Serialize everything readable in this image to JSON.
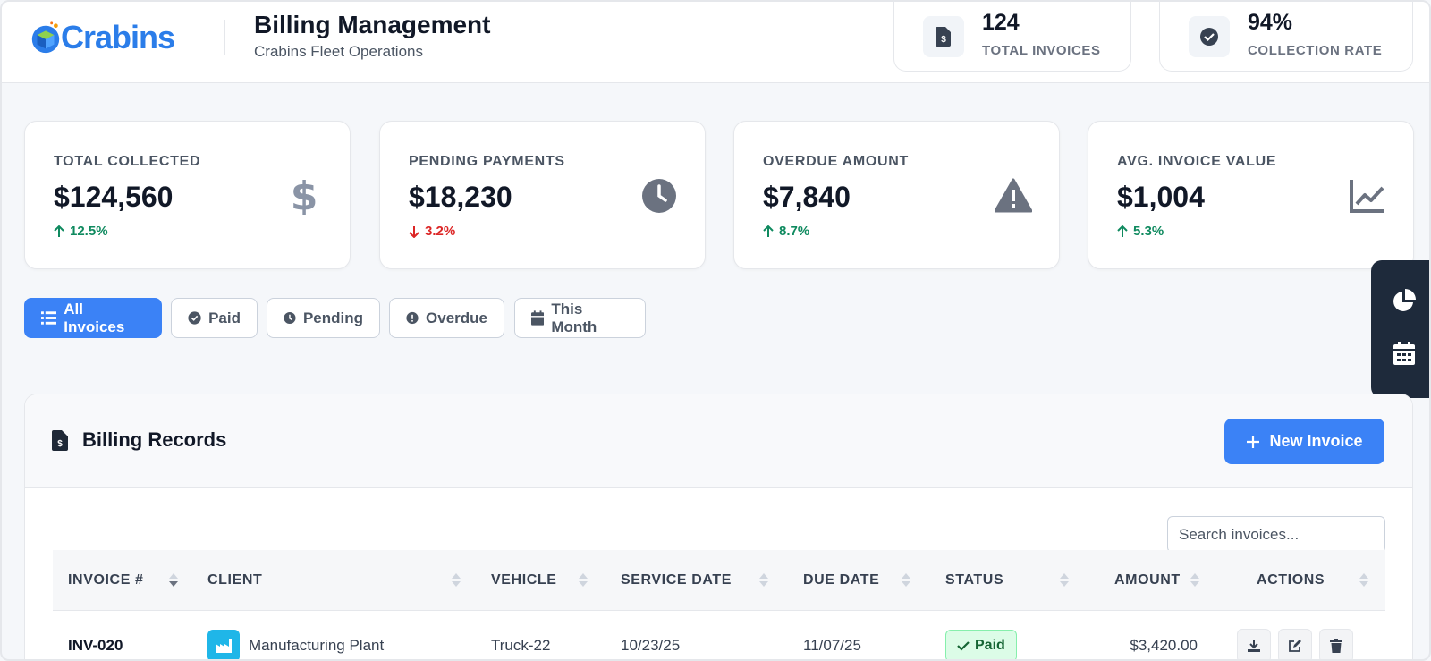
{
  "header": {
    "brand": "Crabins",
    "title": "Billing Management",
    "subtitle": "Crabins Fleet Operations",
    "stats": [
      {
        "value": "124",
        "label": "TOTAL INVOICES",
        "icon": "invoice-icon"
      },
      {
        "value": "94%",
        "label": "COLLECTION RATE",
        "icon": "check-circle-icon"
      }
    ]
  },
  "kpis": [
    {
      "label": "TOTAL COLLECTED",
      "value": "$124,560",
      "change": "12.5%",
      "direction": "up",
      "icon": "dollar-icon"
    },
    {
      "label": "PENDING PAYMENTS",
      "value": "$18,230",
      "change": "3.2%",
      "direction": "down",
      "icon": "clock-icon"
    },
    {
      "label": "OVERDUE AMOUNT",
      "value": "$7,840",
      "change": "8.7%",
      "direction": "up",
      "icon": "warning-icon"
    },
    {
      "label": "AVG. INVOICE VALUE",
      "value": "$1,004",
      "change": "5.3%",
      "direction": "up",
      "icon": "line-chart-icon"
    }
  ],
  "filters": [
    {
      "label": "All Invoices",
      "active": true
    },
    {
      "label": "Paid",
      "active": false
    },
    {
      "label": "Pending",
      "active": false
    },
    {
      "label": "Overdue",
      "active": false
    },
    {
      "label": "This Month",
      "active": false
    }
  ],
  "records": {
    "title": "Billing Records",
    "new_button": "New Invoice",
    "search_placeholder": "Search invoices...",
    "columns": [
      "INVOICE #",
      "CLIENT",
      "VEHICLE",
      "SERVICE DATE",
      "DUE DATE",
      "STATUS",
      "AMOUNT",
      "ACTIONS"
    ],
    "rows": [
      {
        "invoice": "INV-020",
        "client": "Manufacturing Plant",
        "vehicle": "Truck-22",
        "service_date": "10/23/25",
        "due_date": "11/07/25",
        "status": "Paid",
        "amount": "$3,420.00"
      }
    ]
  },
  "colors": {
    "primary": "#3b82f6",
    "sidebar": "#1e2a3b",
    "up": "#0f8a5f",
    "down": "#dc2626"
  }
}
